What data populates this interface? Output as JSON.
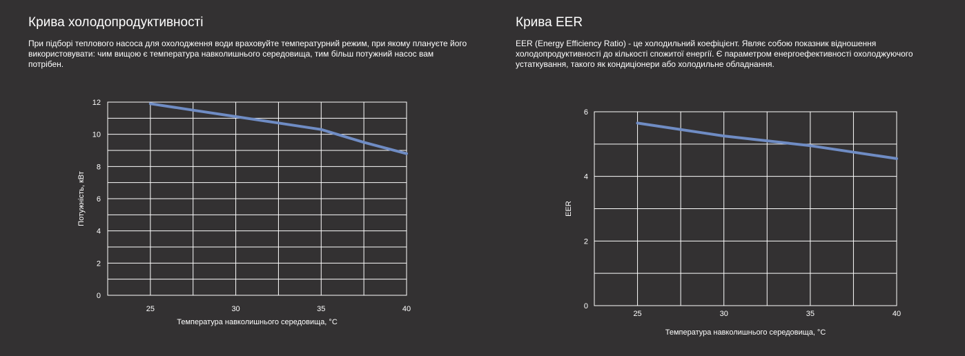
{
  "colors": {
    "background": "#333132",
    "text": "#ffffff",
    "grid": "#ffffff",
    "series": "#6f8cc4"
  },
  "left_panel": {
    "title": "Крива холодопродуктивності",
    "description": "При підборі теплового насоса для охолодження води враховуйте температурний режим, при якому плануєте його використовувати: чим вищою є температура навколишнього середовища, тим більш потужний насос вам потрібен."
  },
  "right_panel": {
    "title": "Крива EER",
    "description": "EER (Energy Efficiency Ratio) - це холодильний коефіцієнт. Являє собою показник відношення холодопродуктивності до кількості спожитої енергії. Є параметром енергоефективності охолоджуючого устаткування, такого як кондиціонери або холодильне обладнання."
  },
  "chart_data": [
    {
      "type": "line",
      "xlabel": "Температура навколишнього середовища, °C",
      "ylabel": "Потужність, кВт",
      "xlim": [
        22.5,
        40
      ],
      "ylim": [
        0,
        12
      ],
      "xticks": [
        25,
        30,
        35,
        40
      ],
      "yticks": [
        0,
        2,
        4,
        6,
        8,
        10,
        12
      ],
      "grid": true,
      "series": [
        {
          "x": [
            25,
            27.5,
            30,
            32.5,
            35,
            37.5,
            40
          ],
          "y": [
            11.9,
            11.5,
            11.1,
            10.7,
            10.3,
            9.5,
            8.8
          ]
        }
      ]
    },
    {
      "type": "line",
      "xlabel": "Температура навколишнього середовища, °C",
      "ylabel": "EER",
      "xlim": [
        22.5,
        40
      ],
      "ylim": [
        0,
        6
      ],
      "xticks": [
        25,
        30,
        35,
        40
      ],
      "yticks": [
        0,
        2,
        4,
        6
      ],
      "grid": true,
      "series": [
        {
          "x": [
            25,
            27.5,
            30,
            32.5,
            35,
            37.5,
            40
          ],
          "y": [
            5.65,
            5.45,
            5.25,
            5.1,
            4.95,
            4.75,
            4.55
          ]
        }
      ]
    }
  ]
}
